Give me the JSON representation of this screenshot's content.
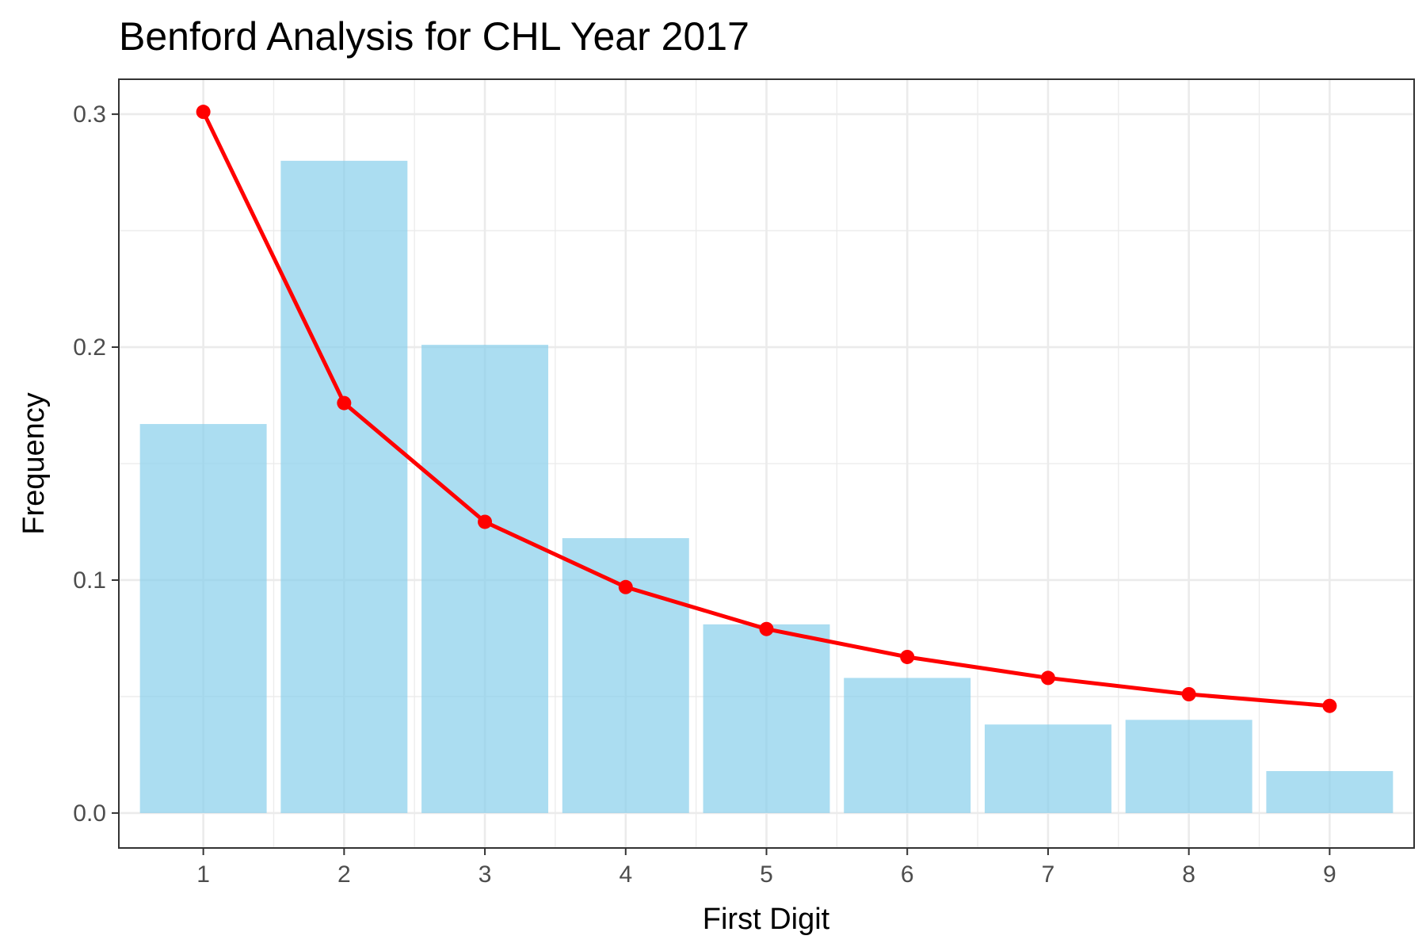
{
  "chart_data": {
    "type": "bar",
    "title": "Benford Analysis for CHL Year 2017",
    "xlabel": "First Digit",
    "ylabel": "Frequency",
    "categories": [
      "1",
      "2",
      "3",
      "4",
      "5",
      "6",
      "7",
      "8",
      "9"
    ],
    "x": [
      1,
      2,
      3,
      4,
      5,
      6,
      7,
      8,
      9
    ],
    "series": [
      {
        "type": "bar",
        "values": [
          0.167,
          0.28,
          0.201,
          0.118,
          0.081,
          0.058,
          0.038,
          0.04,
          0.018
        ],
        "color": "#87ceeb"
      },
      {
        "type": "line",
        "values": [
          0.301,
          0.176,
          0.125,
          0.097,
          0.079,
          0.067,
          0.058,
          0.051,
          0.046
        ],
        "color": "#ff0000"
      }
    ],
    "ylim": [
      -0.015,
      0.315
    ],
    "yticks": [
      0.0,
      0.1,
      0.2,
      0.3
    ],
    "ytick_labels": [
      "0.0",
      "0.1",
      "0.2",
      "0.3"
    ],
    "grid": true,
    "legend": "none"
  }
}
